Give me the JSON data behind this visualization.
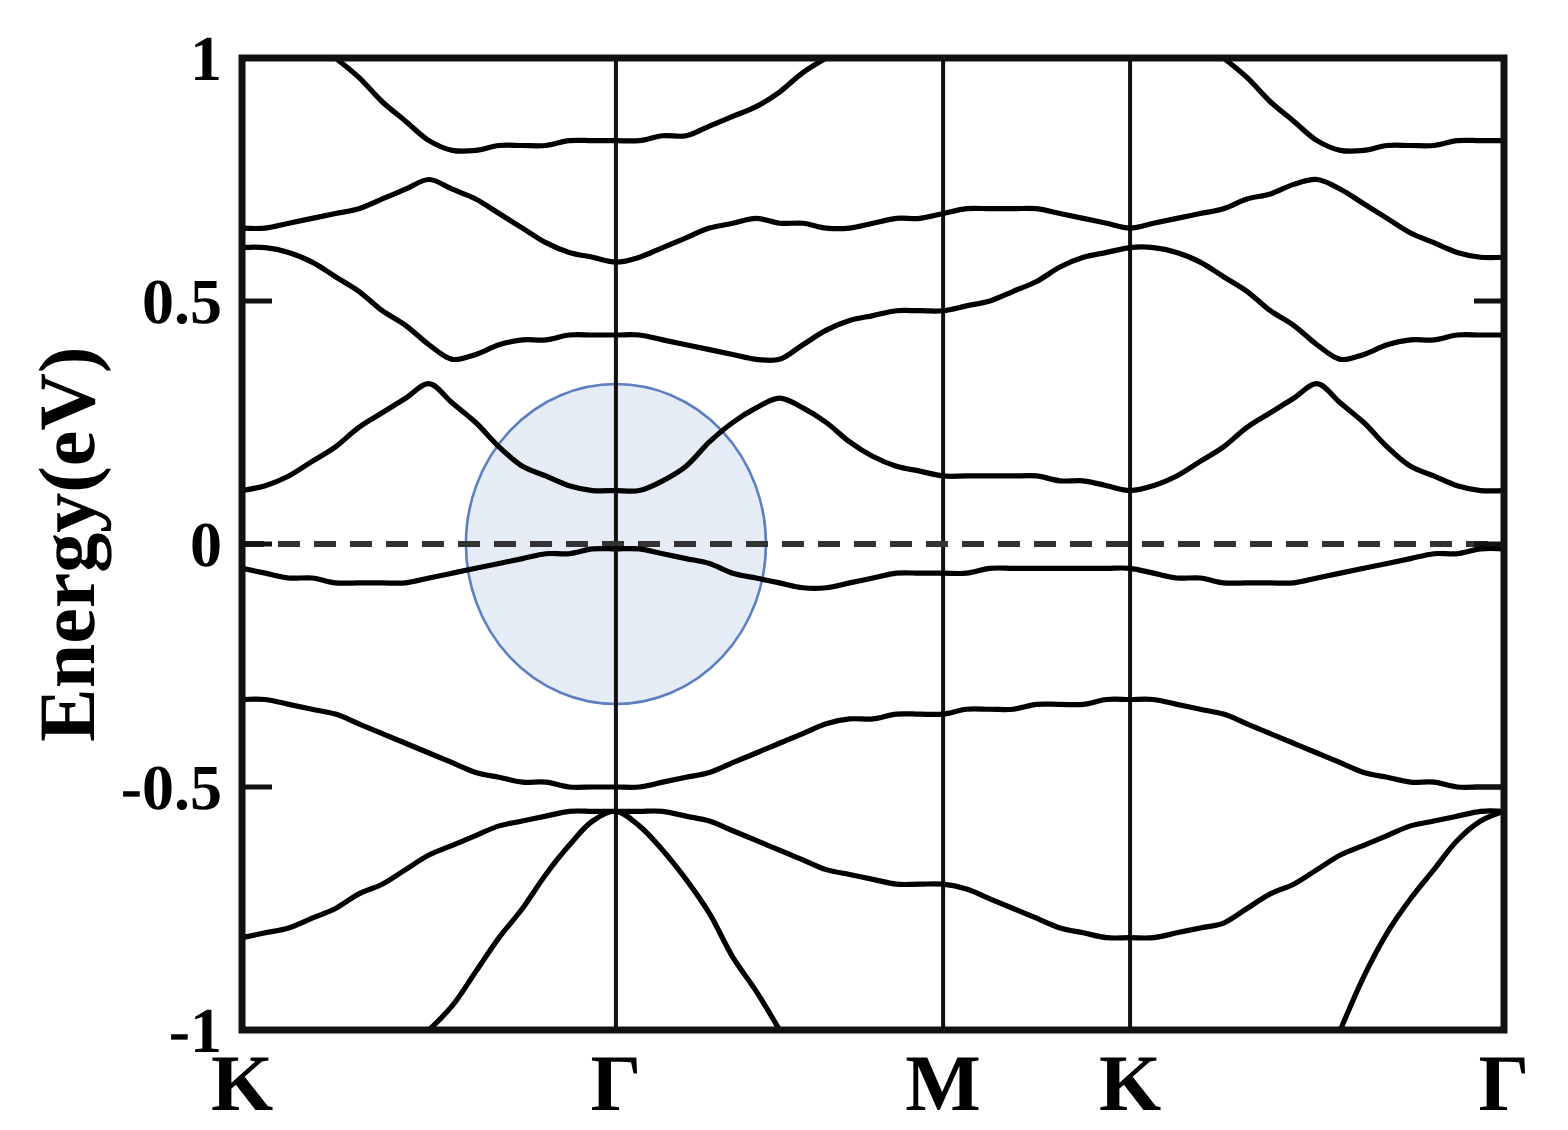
{
  "chart_data": {
    "type": "line",
    "ylabel": "Energy(eV)",
    "categories": [
      "K",
      null,
      null,
      null,
      null,
      null,
      null,
      null,
      null,
      null,
      null,
      null,
      null,
      null,
      null,
      null,
      "Γ",
      null,
      null,
      null,
      null,
      null,
      null,
      null,
      null,
      null,
      null,
      null,
      null,
      null,
      "M",
      null,
      null,
      null,
      null,
      null,
      null,
      null,
      "K",
      null,
      null,
      null,
      null,
      null,
      null,
      null,
      null,
      null,
      null,
      null,
      null,
      null,
      null,
      null,
      "Γ"
    ],
    "ylim": [
      -1,
      1
    ],
    "yticks": [
      -1,
      -0.5,
      0,
      0.5,
      1
    ],
    "grid": "x",
    "ref_lines": [
      {
        "axis": "y",
        "value": 0,
        "color": "#333333",
        "line_style": "dashed"
      }
    ],
    "series": [
      {
        "color": "#000000",
        "values": [
          null,
          null,
          null,
          null,
          1,
          0.96,
          0.91,
          0.87,
          0.83,
          0.81,
          0.81,
          0.82,
          0.82,
          0.82,
          0.83,
          0.83,
          0.83,
          0.83,
          0.84,
          0.84,
          0.86,
          0.88,
          0.9,
          0.93,
          0.97,
          1,
          null,
          null,
          null,
          null,
          null,
          null,
          null,
          null,
          null,
          null,
          null,
          null,
          null,
          null,
          null,
          null,
          1,
          0.96,
          0.91,
          0.87,
          0.83,
          0.81,
          0.81,
          0.82,
          0.82,
          0.82,
          0.83,
          0.83,
          0.83
        ]
      },
      {
        "color": "#000000",
        "values": [
          0.65,
          0.65,
          0.66,
          0.67,
          0.68,
          0.69,
          0.71,
          0.73,
          0.75,
          0.73,
          0.71,
          0.68,
          0.65,
          0.62,
          0.6,
          0.59,
          0.58,
          0.59,
          0.61,
          0.63,
          0.65,
          0.66,
          0.67,
          0.66,
          0.66,
          0.65,
          0.65,
          0.66,
          0.67,
          0.67,
          0.68,
          0.69,
          0.69,
          0.69,
          0.69,
          0.68,
          0.67,
          0.66,
          0.65,
          0.66,
          0.67,
          0.68,
          0.69,
          0.71,
          0.72,
          0.74,
          0.75,
          0.73,
          0.7,
          0.67,
          0.64,
          0.62,
          0.6,
          0.59,
          0.59
        ]
      },
      {
        "color": "#000000",
        "values": [
          0.61,
          0.61,
          0.6,
          0.58,
          0.55,
          0.52,
          0.48,
          0.45,
          0.41,
          0.38,
          0.39,
          0.41,
          0.42,
          0.42,
          0.43,
          0.43,
          0.43,
          0.43,
          0.42,
          0.41,
          0.4,
          0.39,
          0.38,
          0.38,
          0.41,
          0.44,
          0.46,
          0.47,
          0.48,
          0.48,
          0.48,
          0.49,
          0.5,
          0.52,
          0.54,
          0.57,
          0.59,
          0.6,
          0.61,
          0.61,
          0.6,
          0.58,
          0.55,
          0.52,
          0.48,
          0.45,
          0.41,
          0.38,
          0.39,
          0.41,
          0.42,
          0.42,
          0.43,
          0.43,
          0.43
        ]
      },
      {
        "color": "#000000",
        "values": [
          0.11,
          0.12,
          0.14,
          0.17,
          0.2,
          0.24,
          0.27,
          0.3,
          0.33,
          0.29,
          0.25,
          0.2,
          0.16,
          0.14,
          0.12,
          0.11,
          0.11,
          0.11,
          0.13,
          0.16,
          0.21,
          0.25,
          0.28,
          0.3,
          0.28,
          0.25,
          0.21,
          0.18,
          0.16,
          0.15,
          0.14,
          0.14,
          0.14,
          0.14,
          0.14,
          0.13,
          0.13,
          0.12,
          0.11,
          0.12,
          0.14,
          0.17,
          0.2,
          0.24,
          0.27,
          0.3,
          0.33,
          0.29,
          0.25,
          0.2,
          0.16,
          0.14,
          0.12,
          0.11,
          0.11
        ]
      },
      {
        "color": "#000000",
        "values": [
          -0.05,
          -0.06,
          -0.07,
          -0.07,
          -0.08,
          -0.08,
          -0.08,
          -0.08,
          -0.07,
          -0.06,
          -0.05,
          -0.04,
          -0.03,
          -0.02,
          -0.02,
          -0.01,
          -0.01,
          -0.01,
          -0.02,
          -0.03,
          -0.04,
          -0.06,
          -0.07,
          -0.08,
          -0.09,
          -0.09,
          -0.08,
          -0.07,
          -0.06,
          -0.06,
          -0.06,
          -0.06,
          -0.05,
          -0.05,
          -0.05,
          -0.05,
          -0.05,
          -0.05,
          -0.05,
          -0.06,
          -0.07,
          -0.07,
          -0.08,
          -0.08,
          -0.08,
          -0.08,
          -0.07,
          -0.06,
          -0.05,
          -0.04,
          -0.03,
          -0.02,
          -0.02,
          -0.01,
          -0.01
        ]
      },
      {
        "color": "#000000",
        "values": [
          -0.32,
          -0.32,
          -0.33,
          -0.34,
          -0.35,
          -0.37,
          -0.39,
          -0.41,
          -0.43,
          -0.45,
          -0.47,
          -0.48,
          -0.49,
          -0.49,
          -0.5,
          -0.5,
          -0.5,
          -0.5,
          -0.49,
          -0.48,
          -0.47,
          -0.45,
          -0.43,
          -0.41,
          -0.39,
          -0.37,
          -0.36,
          -0.36,
          -0.35,
          -0.35,
          -0.35,
          -0.34,
          -0.34,
          -0.34,
          -0.33,
          -0.33,
          -0.33,
          -0.32,
          -0.32,
          -0.32,
          -0.33,
          -0.34,
          -0.35,
          -0.37,
          -0.39,
          -0.41,
          -0.43,
          -0.45,
          -0.47,
          -0.48,
          -0.49,
          -0.49,
          -0.5,
          -0.5,
          -0.5
        ]
      },
      {
        "color": "#000000",
        "values": [
          -0.81,
          -0.8,
          -0.79,
          -0.77,
          -0.75,
          -0.72,
          -0.7,
          -0.67,
          -0.64,
          -0.62,
          -0.6,
          -0.58,
          -0.57,
          -0.56,
          -0.55,
          -0.55,
          -0.55,
          -0.55,
          -0.55,
          -0.56,
          -0.57,
          -0.59,
          -0.61,
          -0.63,
          -0.65,
          -0.67,
          -0.68,
          -0.69,
          -0.7,
          -0.7,
          -0.7,
          -0.71,
          -0.73,
          -0.75,
          -0.77,
          -0.79,
          -0.8,
          -0.81,
          -0.81,
          -0.81,
          -0.8,
          -0.79,
          -0.78,
          -0.75,
          -0.72,
          -0.7,
          -0.67,
          -0.64,
          -0.62,
          -0.6,
          -0.58,
          -0.57,
          -0.56,
          -0.55,
          -0.55
        ]
      },
      {
        "color": "#000000",
        "values": [
          null,
          null,
          null,
          null,
          null,
          null,
          null,
          null,
          -1,
          -0.95,
          -0.88,
          -0.81,
          -0.75,
          -0.68,
          -0.62,
          -0.57,
          -0.55,
          -0.58,
          -0.63,
          -0.69,
          -0.76,
          -0.85,
          -0.92,
          -1,
          null,
          null,
          null,
          null,
          null,
          null,
          null,
          null,
          null,
          null,
          null,
          null,
          null,
          null,
          null,
          null,
          null,
          null,
          null,
          null,
          null,
          null,
          null,
          -1,
          -0.89,
          -0.8,
          -0.73,
          -0.67,
          -0.61,
          -0.57,
          -0.55
        ]
      }
    ]
  }
}
